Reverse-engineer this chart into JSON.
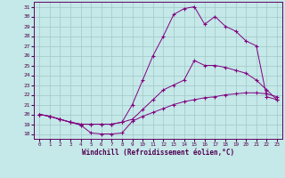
{
  "xlabel": "Windchill (Refroidissement éolien,°C)",
  "background_color": "#c5e8e8",
  "grid_color": "#a0c8c8",
  "line_color": "#800080",
  "xlim": [
    -0.5,
    23.5
  ],
  "ylim": [
    17.5,
    31.5
  ],
  "xticks": [
    0,
    1,
    2,
    3,
    4,
    5,
    6,
    7,
    8,
    9,
    10,
    11,
    12,
    13,
    14,
    15,
    16,
    17,
    18,
    19,
    20,
    21,
    22,
    23
  ],
  "yticks": [
    18,
    19,
    20,
    21,
    22,
    23,
    24,
    25,
    26,
    27,
    28,
    29,
    30,
    31
  ],
  "line1_x": [
    0,
    1,
    2,
    3,
    4,
    5,
    6,
    7,
    8,
    9,
    10,
    11,
    12,
    13,
    14,
    15,
    16,
    17,
    18,
    19,
    20,
    21,
    22,
    23
  ],
  "line1_y": [
    20.0,
    19.8,
    19.5,
    19.2,
    18.9,
    18.1,
    18.0,
    18.0,
    18.1,
    19.3,
    19.8,
    20.2,
    20.6,
    21.0,
    21.3,
    21.5,
    21.7,
    21.8,
    22.0,
    22.1,
    22.2,
    22.2,
    22.1,
    21.8
  ],
  "line2_x": [
    0,
    1,
    2,
    3,
    4,
    5,
    6,
    7,
    8,
    9,
    10,
    11,
    12,
    13,
    14,
    15,
    16,
    17,
    18,
    19,
    20,
    21,
    22,
    23
  ],
  "line2_y": [
    20.0,
    19.8,
    19.5,
    19.2,
    19.0,
    19.0,
    19.0,
    19.0,
    19.2,
    19.5,
    20.5,
    21.5,
    22.5,
    23.0,
    23.5,
    25.5,
    25.0,
    25.0,
    24.8,
    24.5,
    24.2,
    23.5,
    22.5,
    21.5
  ],
  "line3_x": [
    0,
    1,
    2,
    3,
    4,
    5,
    6,
    7,
    8,
    9,
    10,
    11,
    12,
    13,
    14,
    15,
    16,
    17,
    18,
    19,
    20,
    21,
    22,
    23
  ],
  "line3_y": [
    20.0,
    19.8,
    19.5,
    19.2,
    19.0,
    19.0,
    19.0,
    19.0,
    19.2,
    21.0,
    23.5,
    26.0,
    28.0,
    30.2,
    30.8,
    31.0,
    29.2,
    30.0,
    29.0,
    28.5,
    27.5,
    27.0,
    21.8,
    21.5
  ]
}
